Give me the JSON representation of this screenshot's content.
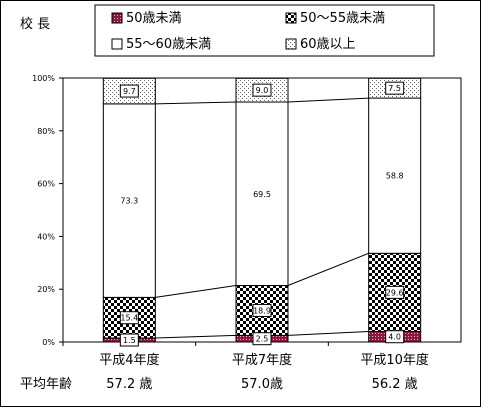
{
  "title": "校 長",
  "chart_data": {
    "type": "bar",
    "stacked": true,
    "percent": true,
    "categories": [
      "平成4年度",
      "平成7年度",
      "平成10年度"
    ],
    "series": [
      {
        "name": "50歳未満",
        "values": [
          1.5,
          2.5,
          4.0
        ],
        "color": "#8b1a3a",
        "pattern": "dark-dots"
      },
      {
        "name": "50～55歳未満",
        "values": [
          15.4,
          18.9,
          29.6
        ],
        "color": "#000000",
        "pattern": "checker"
      },
      {
        "name": "55～60歳未満",
        "values": [
          73.3,
          69.5,
          58.8
        ],
        "color": "#ffffff",
        "pattern": "blank"
      },
      {
        "name": "60歳以上",
        "values": [
          9.7,
          9.0,
          7.5
        ],
        "color": "#bbbbbb",
        "pattern": "light-dots"
      }
    ],
    "y_ticks": [
      "0%",
      "20%",
      "40%",
      "60%",
      "80%",
      "100%"
    ],
    "ylim": [
      0,
      100
    ],
    "grid": false,
    "legend": "top",
    "series_lines": true
  },
  "average_age": {
    "label": "平均年齢",
    "values": [
      "57.2 歳",
      "57.0歳",
      "56.2 歳"
    ]
  }
}
